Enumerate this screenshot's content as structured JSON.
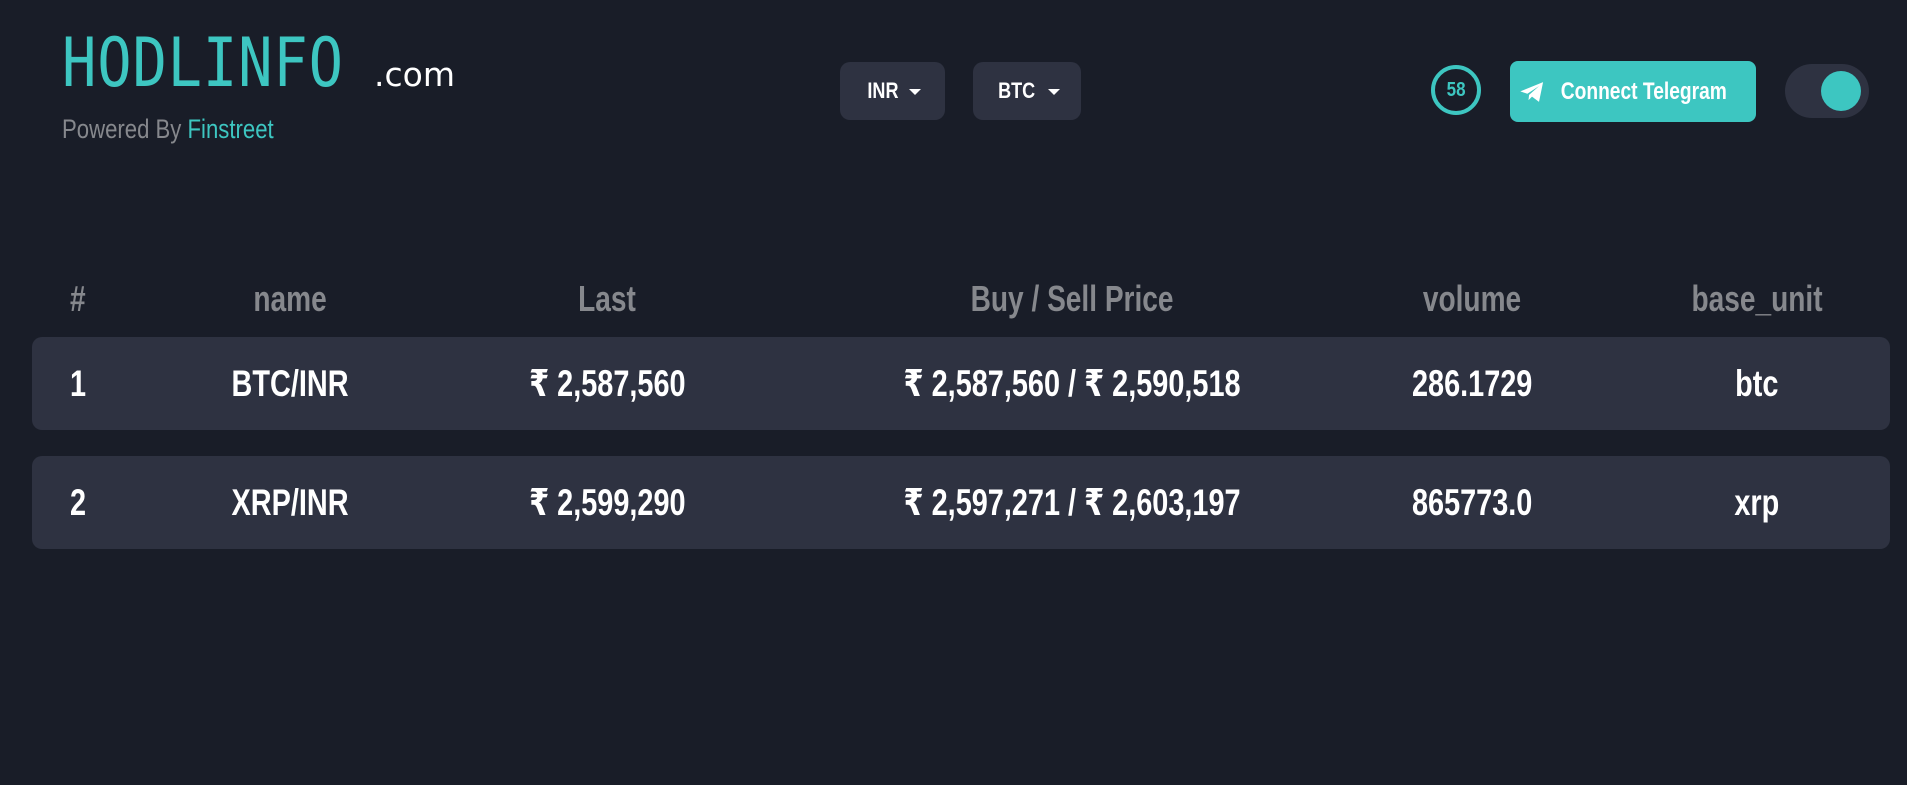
{
  "brand": {
    "logo_main": "HODLINFO",
    "logo_tld": ".com",
    "powered_prefix": "Powered By",
    "powered_name": "Finstreet"
  },
  "selectors": {
    "currency": "INR",
    "crypto": "BTC"
  },
  "timer": {
    "value": "58"
  },
  "telegram_button": {
    "label": "Connect Telegram"
  },
  "theme_toggle": {
    "state": "on"
  },
  "colors": {
    "background": "#191d28",
    "row_background": "#2e3241",
    "accent": "#3dc6c1",
    "muted_text": "#86888d",
    "text": "#ffffff"
  },
  "table": {
    "columns": [
      "#",
      "name",
      "Last",
      "Buy / Sell Price",
      "volume",
      "base_unit"
    ],
    "rows": [
      {
        "num": "1",
        "name": "BTC/INR",
        "last": "₹ 2,587,560",
        "buy_sell": "₹ 2,587,560 / ₹ 2,590,518",
        "volume": "286.1729",
        "base_unit": "btc"
      },
      {
        "num": "2",
        "name": "XRP/INR",
        "last": "₹ 2,599,290",
        "buy_sell": "₹ 2,597,271 / ₹ 2,603,197",
        "volume": "865773.0",
        "base_unit": "xrp"
      }
    ]
  },
  "icons": {
    "telegram": "telegram-plane-icon",
    "caret": "caret-down-icon"
  }
}
